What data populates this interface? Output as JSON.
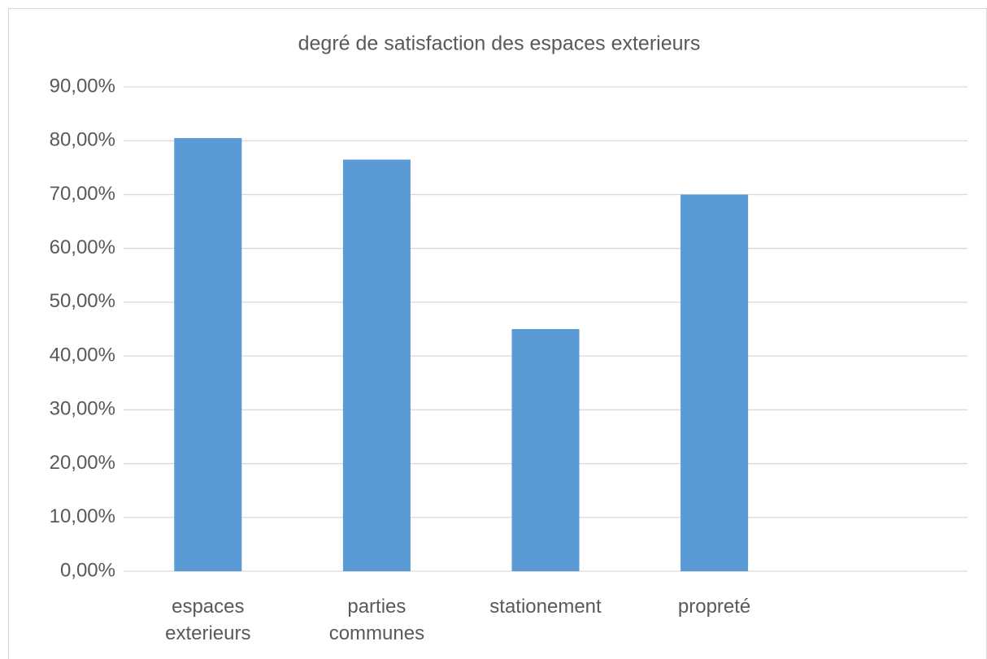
{
  "chart_data": {
    "type": "bar",
    "title": "degré de satisfaction des espaces exterieurs",
    "categories": [
      "espaces exterieurs",
      "parties communes",
      "stationement",
      "propreté",
      null
    ],
    "values": [
      80.5,
      76.5,
      45,
      70,
      null
    ],
    "color": "#5b9bd5",
    "ylim": [
      0,
      90
    ],
    "yticks": [
      {
        "value": 0,
        "label": "0,00%"
      },
      {
        "value": 10,
        "label": "10,00%"
      },
      {
        "value": 20,
        "label": "20,00%"
      },
      {
        "value": 30,
        "label": "30,00%"
      },
      {
        "value": 40,
        "label": "40,00%"
      },
      {
        "value": 50,
        "label": "50,00%"
      },
      {
        "value": 60,
        "label": "60,00%"
      },
      {
        "value": 70,
        "label": "70,00%"
      },
      {
        "value": 80,
        "label": "80,00%"
      },
      {
        "value": 90,
        "label": "90,00%"
      }
    ],
    "grid": true
  }
}
